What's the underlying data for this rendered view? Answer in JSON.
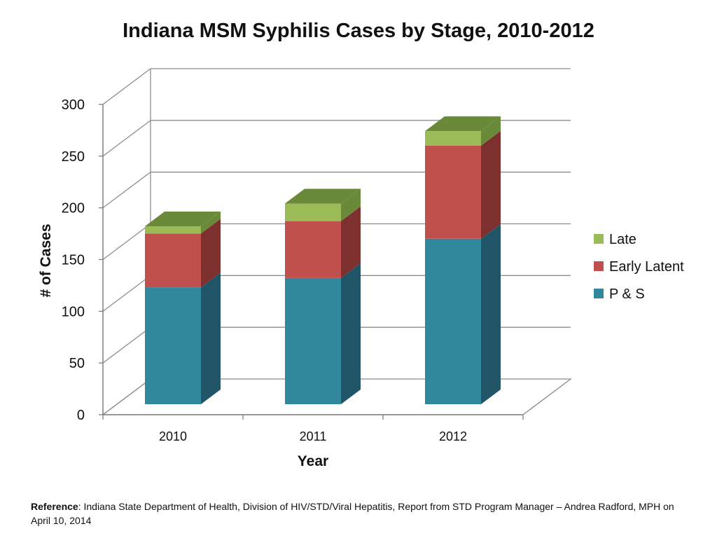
{
  "slide": {
    "reference_label": "Reference",
    "reference_text": ":  Indiana State Department of Health, Division of HIV/STD/Viral Hepatitis, Report from STD Program Manager – Andrea Radford, MPH on April 10, 2014"
  },
  "chart_data": {
    "type": "bar",
    "stacked": true,
    "three_d": true,
    "title": "Indiana MSM Syphilis Cases by Stage, 2010-2012",
    "xlabel": "Year",
    "ylabel": "# of Cases",
    "categories": [
      "2010",
      "2011",
      "2012"
    ],
    "ylim": [
      0,
      300
    ],
    "yticks": [
      "0",
      "50",
      "100",
      "150",
      "200",
      "250",
      "300"
    ],
    "grid": true,
    "legend_position": "right",
    "series": [
      {
        "name": "P & S",
        "values": [
          113,
          122,
          160
        ],
        "color": "#31879b",
        "side_color": "#1f5566"
      },
      {
        "name": "Early Latent",
        "values": [
          52,
          55,
          90
        ],
        "color": "#c0504d",
        "side_color": "#7d302e"
      },
      {
        "name": "Late",
        "values": [
          7,
          17,
          14
        ],
        "color": "#9bbb59",
        "side_color": "#6a8a3a"
      }
    ]
  }
}
